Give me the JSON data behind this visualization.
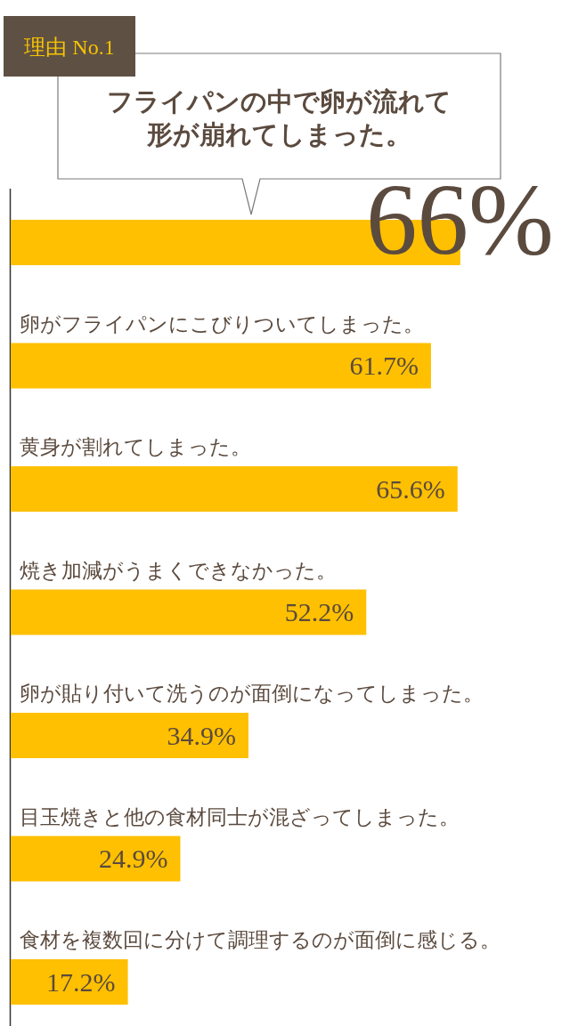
{
  "chart_data": {
    "type": "bar",
    "orientation": "horizontal",
    "categories": [
      null,
      "卵がフライパンにこびりついてしまった。",
      "黄身が割れてしまった。",
      "焼き加減がうまくできなかった。",
      "卵が貼り付いて洗うのが面倒になってしまった。",
      "目玉焼きと他の食材同士が混ざってしまった。",
      "食材を複数回に分けて調理するのが面倒に感じる。"
    ],
    "values": [
      66,
      61.7,
      65.6,
      52.2,
      34.9,
      24.9,
      17.2
    ],
    "value_labels": [
      "66%",
      "61.7%",
      "65.6%",
      "52.2%",
      "34.9%",
      "24.9%",
      "17.2%"
    ],
    "color": "#fec000",
    "tick_labels": "y",
    "annotations": [
      "理由 No.1",
      "フライパンの中で卵が流れて形が崩れてしまった。"
    ]
  }
}
